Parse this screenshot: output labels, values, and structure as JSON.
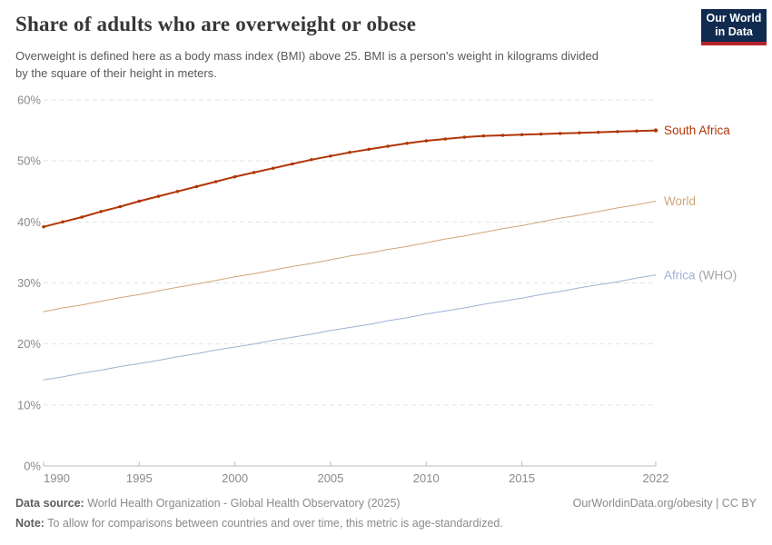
{
  "header": {
    "title": "Share of adults who are overweight or obese",
    "subtitle_line1": "Overweight is defined here as a body mass index (BMI) above 25. BMI is a person's weight in kilograms divided",
    "subtitle_line2": "by the square of their height in meters.",
    "logo_line1": "Our World",
    "logo_line2": "in Data",
    "logo_bg_color": "#102a50",
    "logo_accent_color": "#b7252c"
  },
  "chart_data": {
    "type": "line",
    "title": "Share of adults who are overweight or obese",
    "xlabel": "",
    "ylabel": "",
    "x_start": 1990,
    "x_end": 2022,
    "xticks": [
      1990,
      1995,
      2000,
      2005,
      2010,
      2015,
      2022
    ],
    "yticks": [
      0,
      10,
      20,
      30,
      40,
      50,
      60
    ],
    "ytick_suffix": "%",
    "ylim": [
      0,
      60
    ],
    "grid": "horizontal-dashed",
    "legend_position": "right-end-of-line",
    "gridline_color": "#e3e3e3",
    "axis_color": "#bdbdbd",
    "tick_label_color": "#8a8a8a",
    "series": [
      {
        "name": "South Africa",
        "suffix": "",
        "color": "#b13507",
        "markers": true,
        "line_width": 2,
        "values": [
          39.2,
          40.0,
          40.8,
          41.7,
          42.5,
          43.4,
          44.2,
          45.0,
          45.8,
          46.6,
          47.4,
          48.1,
          48.8,
          49.5,
          50.2,
          50.8,
          51.4,
          51.9,
          52.4,
          52.9,
          53.3,
          53.6,
          53.9,
          54.1,
          54.2,
          54.3,
          54.4,
          54.5,
          54.6,
          54.7,
          54.8,
          54.9,
          55.0
        ]
      },
      {
        "name": "World",
        "suffix": "",
        "color": "#cda67a",
        "markers": false,
        "line_width": 1,
        "values": [
          25.3,
          25.9,
          26.4,
          27.0,
          27.6,
          28.1,
          28.7,
          29.3,
          29.8,
          30.4,
          31.0,
          31.5,
          32.1,
          32.7,
          33.2,
          33.8,
          34.4,
          34.9,
          35.5,
          36.0,
          36.6,
          37.2,
          37.7,
          38.3,
          38.9,
          39.4,
          40.0,
          40.6,
          41.1,
          41.7,
          42.3,
          42.8,
          43.4
        ]
      },
      {
        "name": "Africa",
        "suffix": " (WHO)",
        "suffix_color": "#a3a3a3",
        "color": "#9db3d5",
        "markers": false,
        "line_width": 1,
        "values": [
          14.1,
          14.6,
          15.2,
          15.7,
          16.3,
          16.8,
          17.3,
          17.9,
          18.4,
          19.0,
          19.5,
          20.0,
          20.6,
          21.1,
          21.6,
          22.2,
          22.7,
          23.2,
          23.8,
          24.3,
          24.9,
          25.4,
          25.9,
          26.5,
          27.0,
          27.5,
          28.1,
          28.6,
          29.2,
          29.7,
          30.2,
          30.8,
          31.3
        ]
      }
    ]
  },
  "footer": {
    "datasource_label": "Data source:",
    "datasource_text": " World Health Organization - Global Health Observatory (2025)",
    "link": "OurWorldinData.org/obesity | CC BY",
    "note_label": "Note:",
    "note_text": " To allow for comparisons between countries and over time, this metric is age-standardized."
  }
}
